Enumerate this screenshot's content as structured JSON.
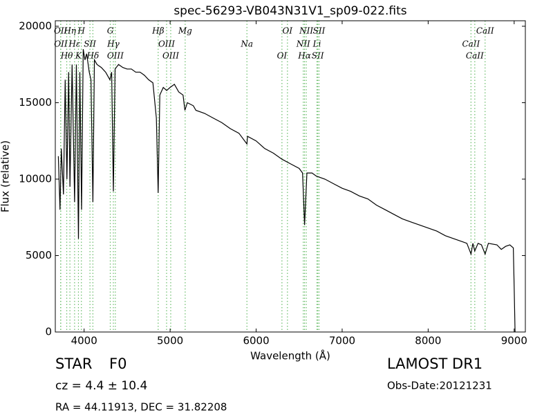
{
  "chart_data": {
    "type": "line",
    "title": "spec-56293-VB043N31V1_sp09-022.fits",
    "x_label": "Wavelength (Å)",
    "y_label": "Flux (relative)",
    "x": [
      3700,
      3720,
      3735,
      3760,
      3780,
      3800,
      3820,
      3835,
      3860,
      3889,
      3910,
      3934,
      3950,
      3970,
      3990,
      4010,
      4030,
      4060,
      4080,
      4102,
      4120,
      4150,
      4200,
      4250,
      4300,
      4320,
      4340,
      4360,
      4400,
      4450,
      4500,
      4550,
      4600,
      4650,
      4700,
      4750,
      4800,
      4840,
      4861,
      4880,
      4920,
      4960,
      5000,
      5050,
      5100,
      5150,
      5172,
      5200,
      5270,
      5300,
      5400,
      5500,
      5600,
      5700,
      5800,
      5893,
      5900,
      6000,
      6100,
      6200,
      6300,
      6400,
      6500,
      6540,
      6563,
      6590,
      6650,
      6700,
      6800,
      6900,
      7000,
      7100,
      7200,
      7300,
      7400,
      7500,
      7600,
      7700,
      7800,
      7900,
      8000,
      8100,
      8200,
      8300,
      8400,
      8450,
      8498,
      8520,
      8542,
      8580,
      8620,
      8662,
      8700,
      8800,
      8850,
      8900,
      8950,
      8990,
      9000,
      9010
    ],
    "values": [
      11500,
      8000,
      12000,
      9000,
      16500,
      10000,
      17000,
      9500,
      17500,
      8500,
      17500,
      6100,
      17000,
      8000,
      18500,
      17800,
      18200,
      17000,
      16500,
      8500,
      17800,
      17500,
      17300,
      17000,
      16500,
      17000,
      9200,
      17200,
      17500,
      17300,
      17200,
      17200,
      17000,
      17000,
      16800,
      16500,
      16300,
      14000,
      9100,
      15500,
      16000,
      15800,
      16000,
      16200,
      15700,
      15500,
      14500,
      15000,
      14800,
      14500,
      14300,
      14000,
      13700,
      13300,
      13000,
      12300,
      12800,
      12500,
      12000,
      11700,
      11300,
      11000,
      10700,
      10400,
      7000,
      10400,
      10400,
      10200,
      10000,
      9700,
      9400,
      9200,
      8900,
      8700,
      8300,
      8000,
      7700,
      7400,
      7200,
      7000,
      6800,
      6600,
      6300,
      6100,
      5900,
      5800,
      5100,
      5800,
      5300,
      5800,
      5700,
      5100,
      5800,
      5700,
      5400,
      5600,
      5700,
      5500,
      3000,
      0
    ],
    "color": "#000000",
    "xlim": [
      3665,
      9130
    ],
    "ylim": [
      0,
      20360
    ],
    "xticks": [
      4000,
      5000,
      6000,
      7000,
      8000,
      9000
    ],
    "yticks": [
      0,
      5000,
      10000,
      15000,
      20000
    ],
    "line_color": "#66bb66",
    "lines": [
      {
        "x": 3727,
        "label": "OII"
      },
      {
        "x": 3729,
        "label": "OII"
      },
      {
        "x": 3798,
        "label": "Hθ"
      },
      {
        "x": 3835,
        "label": "Hη"
      },
      {
        "x": 3889,
        "label": "Hε"
      },
      {
        "x": 3934,
        "label": "K"
      },
      {
        "x": 3968,
        "label": "H"
      },
      {
        "x": 4068,
        "label": "SII"
      },
      {
        "x": 4102,
        "label": "Hδ"
      },
      {
        "x": 4304,
        "label": "G"
      },
      {
        "x": 4340,
        "label": "Hγ"
      },
      {
        "x": 4363,
        "label": "OIII"
      },
      {
        "x": 4861,
        "label": "Hβ"
      },
      {
        "x": 4959,
        "label": "OIII"
      },
      {
        "x": 5007,
        "label": "OIII"
      },
      {
        "x": 5175,
        "label": "Mg"
      },
      {
        "x": 5893,
        "label": "Na"
      },
      {
        "x": 6300,
        "label": "OI"
      },
      {
        "x": 6364,
        "label": "OI"
      },
      {
        "x": 6548,
        "label": "NII"
      },
      {
        "x": 6563,
        "label": "Hα"
      },
      {
        "x": 6583,
        "label": "NII"
      },
      {
        "x": 6707,
        "label": "Li"
      },
      {
        "x": 6716,
        "label": "SII"
      },
      {
        "x": 6731,
        "label": "SII"
      },
      {
        "x": 8498,
        "label": "CaII"
      },
      {
        "x": 8542,
        "label": "CaII"
      },
      {
        "x": 8662,
        "label": "CaII"
      }
    ]
  },
  "info": {
    "class": "STAR",
    "subclass": "F0",
    "cz": "cz = 4.4 ± 10.4",
    "coords": "RA = 44.11913, DEC = 31.82208",
    "release": "LAMOST DR1",
    "obs_date": "Obs-Date:20121231"
  }
}
